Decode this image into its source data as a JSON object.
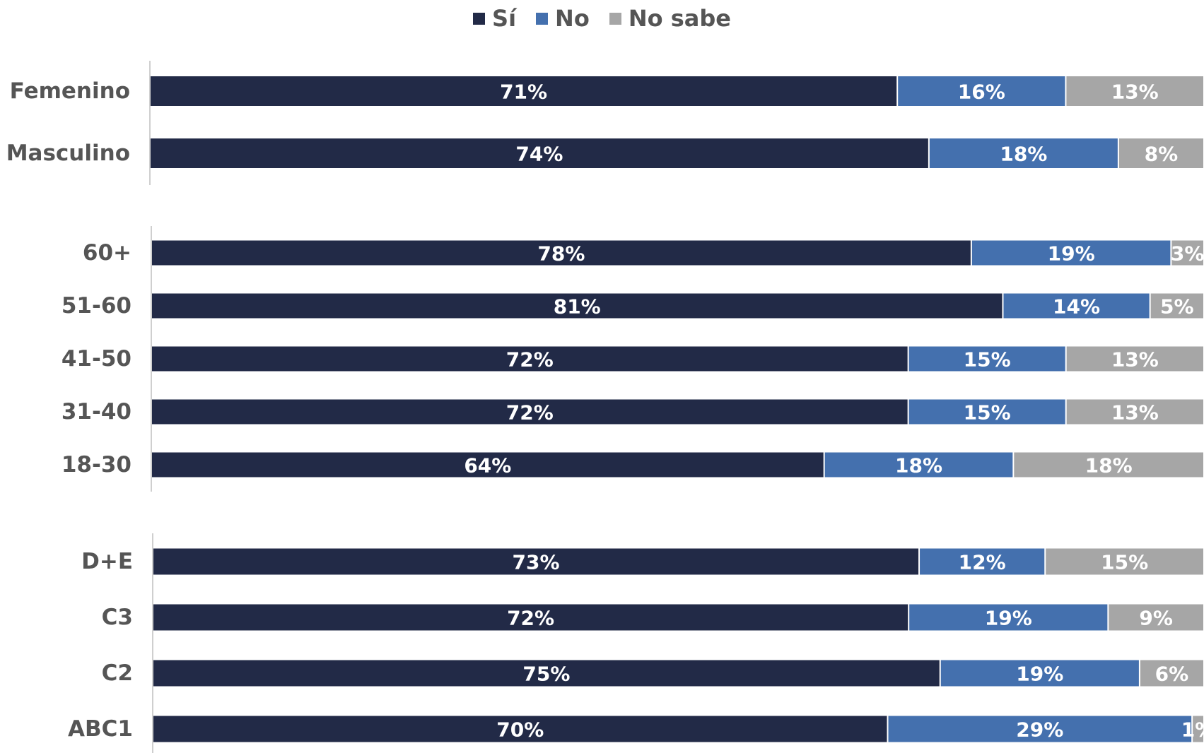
{
  "chart_data": {
    "type": "bar",
    "orientation": "horizontal",
    "stacked": true,
    "title": "",
    "xlabel": "",
    "ylabel": "",
    "xlim": [
      0,
      100
    ],
    "legend_position": "top-center",
    "grid": false,
    "series": [
      {
        "name": "Sí",
        "color": "#222a47"
      },
      {
        "name": "No",
        "color": "#4470ae"
      },
      {
        "name": "No sabe",
        "color": "#a6a6a6"
      }
    ],
    "groups": [
      {
        "rows": [
          {
            "category": "Femenino",
            "values": [
              71,
              16,
              13
            ],
            "labels": [
              "71%",
              "16%",
              "13%"
            ]
          },
          {
            "category": "Masculino",
            "values": [
              74,
              18,
              8
            ],
            "labels": [
              "74%",
              "18%",
              "8%"
            ]
          }
        ]
      },
      {
        "rows": [
          {
            "category": "60+",
            "values": [
              78,
              19,
              3
            ],
            "labels": [
              "78%",
              "19%",
              "3%"
            ]
          },
          {
            "category": "51-60",
            "values": [
              81,
              14,
              5
            ],
            "labels": [
              "81%",
              "14%",
              "5%"
            ]
          },
          {
            "category": "41-50",
            "values": [
              72,
              15,
              13
            ],
            "labels": [
              "72%",
              "15%",
              "13%"
            ]
          },
          {
            "category": "31-40",
            "values": [
              72,
              15,
              13
            ],
            "labels": [
              "72%",
              "15%",
              "13%"
            ]
          },
          {
            "category": "18-30",
            "values": [
              64,
              18,
              18
            ],
            "labels": [
              "64%",
              "18%",
              "18%"
            ]
          }
        ]
      },
      {
        "rows": [
          {
            "category": "D+E",
            "values": [
              73,
              12,
              15
            ],
            "labels": [
              "73%",
              "12%",
              "15%"
            ]
          },
          {
            "category": "C3",
            "values": [
              72,
              19,
              9
            ],
            "labels": [
              "72%",
              "19%",
              "9%"
            ]
          },
          {
            "category": "C2",
            "values": [
              75,
              19,
              6
            ],
            "labels": [
              "75%",
              "19%",
              "6%"
            ]
          },
          {
            "category": "ABC1",
            "values": [
              70,
              29,
              1
            ],
            "labels": [
              "70%",
              "29%",
              "1%"
            ]
          }
        ]
      }
    ]
  }
}
